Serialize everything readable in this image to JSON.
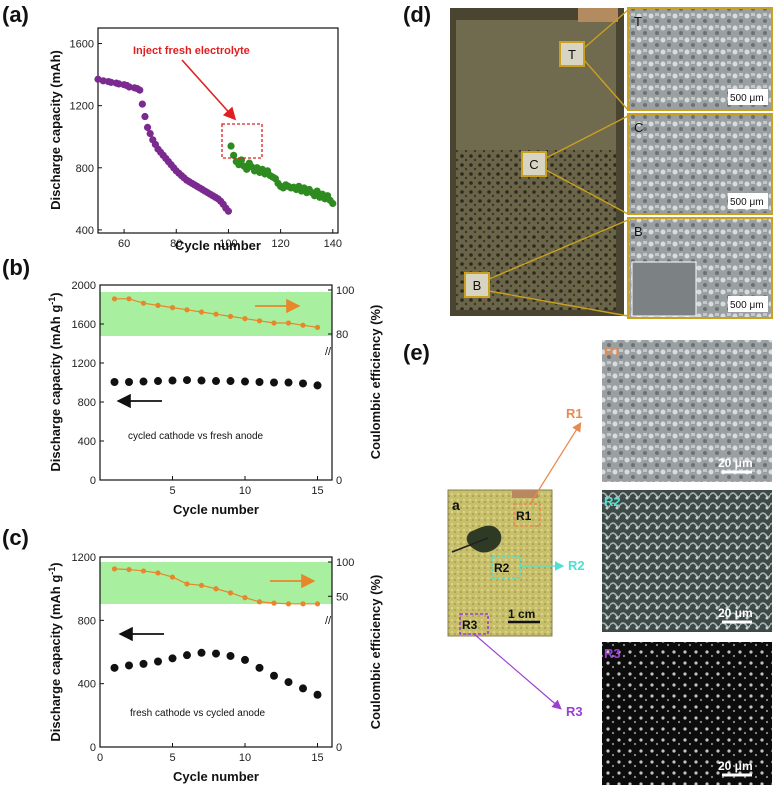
{
  "chart_data": [
    {
      "panel_label": "(a)",
      "type": "scatter",
      "xlabel": "Cycle number",
      "ylabel": "Discharge capacity (mAh)",
      "xlim": [
        50,
        142
      ],
      "ylim": [
        380,
        1700
      ],
      "xticks": [
        60,
        80,
        100,
        120,
        140
      ],
      "yticks": [
        400,
        800,
        1200,
        1600
      ],
      "annotation": "Inject fresh electrolyte",
      "annotation_color": "#e02020",
      "series": [
        {
          "color": "#7b2a8f",
          "points": [
            [
              50,
              1370
            ],
            [
              52,
              1360
            ],
            [
              54,
              1355
            ],
            [
              55,
              1350
            ],
            [
              57,
              1345
            ],
            [
              58,
              1340
            ],
            [
              60,
              1335
            ],
            [
              61,
              1330
            ],
            [
              62,
              1320
            ],
            [
              64,
              1315
            ],
            [
              65,
              1310
            ],
            [
              66,
              1300
            ],
            [
              67,
              1210
            ],
            [
              68,
              1130
            ],
            [
              69,
              1060
            ],
            [
              70,
              1020
            ],
            [
              71,
              980
            ],
            [
              72,
              950
            ],
            [
              73,
              920
            ],
            [
              74,
              900
            ],
            [
              75,
              880
            ],
            [
              76,
              860
            ],
            [
              77,
              840
            ],
            [
              78,
              820
            ],
            [
              79,
              800
            ],
            [
              80,
              780
            ],
            [
              81,
              765
            ],
            [
              82,
              750
            ],
            [
              83,
              735
            ],
            [
              84,
              720
            ],
            [
              85,
              710
            ],
            [
              86,
              700
            ],
            [
              87,
              690
            ],
            [
              88,
              680
            ],
            [
              89,
              670
            ],
            [
              90,
              660
            ],
            [
              91,
              650
            ],
            [
              92,
              640
            ],
            [
              93,
              630
            ],
            [
              94,
              620
            ],
            [
              95,
              610
            ],
            [
              96,
              600
            ],
            [
              97,
              585
            ],
            [
              98,
              565
            ],
            [
              99,
              540
            ],
            [
              100,
              520
            ]
          ]
        },
        {
          "color": "#2e8b20",
          "points": [
            [
              101,
              940
            ],
            [
              102,
              880
            ],
            [
              103,
              840
            ],
            [
              104,
              820
            ],
            [
              105,
              850
            ],
            [
              106,
              810
            ],
            [
              107,
              790
            ],
            [
              108,
              830
            ],
            [
              109,
              805
            ],
            [
              110,
              780
            ],
            [
              111,
              800
            ],
            [
              112,
              770
            ],
            [
              113,
              790
            ],
            [
              114,
              760
            ],
            [
              115,
              780
            ],
            [
              116,
              750
            ],
            [
              117,
              740
            ],
            [
              118,
              730
            ],
            [
              119,
              700
            ],
            [
              120,
              680
            ],
            [
              121,
              670
            ],
            [
              122,
              690
            ],
            [
              123,
              680
            ],
            [
              124,
              670
            ],
            [
              125,
              675
            ],
            [
              126,
              660
            ],
            [
              127,
              680
            ],
            [
              128,
              650
            ],
            [
              129,
              670
            ],
            [
              130,
              640
            ],
            [
              131,
              660
            ],
            [
              132,
              640
            ],
            [
              133,
              620
            ],
            [
              134,
              650
            ],
            [
              135,
              610
            ],
            [
              136,
              630
            ],
            [
              137,
              600
            ],
            [
              138,
              620
            ],
            [
              139,
              590
            ],
            [
              140,
              570
            ]
          ]
        }
      ]
    },
    {
      "panel_label": "(b)",
      "type": "scatter",
      "xlabel": "Cycle number",
      "ylabel": "Discharge capacity (mAh g",
      "ylabel_sup": "-1",
      "ylabel_end": ")",
      "y2label": "Coulombic efficiency (%)",
      "xlim": [
        0,
        16
      ],
      "ylim": [
        0,
        2000
      ],
      "xticks": [
        5,
        10,
        15
      ],
      "yticks": [
        0,
        400,
        800,
        1200,
        1600,
        2000
      ],
      "y2ticks": [
        0,
        80,
        100
      ],
      "annotation": "cycled cathode vs fresh anode",
      "capacity": {
        "color": "#111111",
        "x": [
          1,
          2,
          3,
          4,
          5,
          6,
          7,
          8,
          9,
          10,
          11,
          12,
          13,
          14,
          15
        ],
        "values": [
          1005,
          1005,
          1010,
          1015,
          1020,
          1025,
          1020,
          1015,
          1015,
          1010,
          1005,
          1000,
          1000,
          990,
          970
        ]
      },
      "efficiency": {
        "color": "#e8862a",
        "x": [
          1,
          2,
          3,
          4,
          5,
          6,
          7,
          8,
          9,
          10,
          11,
          12,
          13,
          14,
          15
        ],
        "values": [
          96,
          96,
          94,
          93,
          92,
          91,
          90,
          89,
          88,
          87,
          86,
          85,
          85,
          84,
          83
        ]
      }
    },
    {
      "panel_label": "(c)",
      "type": "scatter",
      "xlabel": "Cycle number",
      "ylabel": "Discharge capacity (mAh g",
      "ylabel_sup": "-1",
      "ylabel_end": ")",
      "y2label": "Coulombic efficiency (%)",
      "xlim": [
        0,
        16
      ],
      "ylim": [
        0,
        1200
      ],
      "xticks": [
        0,
        5,
        10,
        15
      ],
      "yticks": [
        0,
        400,
        800,
        1200
      ],
      "y2ticks": [
        0,
        50,
        100
      ],
      "annotation": "fresh cathode vs cycled anode",
      "capacity": {
        "color": "#111111",
        "x": [
          1,
          2,
          3,
          4,
          5,
          6,
          7,
          8,
          9,
          10,
          11,
          12,
          13,
          14,
          15
        ],
        "values": [
          500,
          515,
          525,
          540,
          560,
          580,
          595,
          590,
          575,
          550,
          500,
          450,
          410,
          370,
          330
        ]
      },
      "efficiency": {
        "color": "#e8862a",
        "x": [
          1,
          2,
          3,
          4,
          5,
          6,
          7,
          8,
          9,
          10,
          11,
          12,
          13,
          14,
          15
        ],
        "values": [
          90,
          89,
          87,
          84,
          78,
          68,
          66,
          61,
          55,
          48,
          42,
          40,
          39,
          39,
          39
        ]
      }
    }
  ],
  "panel_d": {
    "label": "(d)",
    "markers": [
      "T",
      "C",
      "B"
    ],
    "insets": [
      {
        "label": "T",
        "scale": "500 μm"
      },
      {
        "label": "C",
        "scale": "500 μm"
      },
      {
        "label": "B",
        "scale": "500 μm"
      }
    ]
  },
  "panel_e": {
    "label": "(e)",
    "photo_label": "a",
    "photo_scale": "1 cm",
    "regions": [
      {
        "label": "R1",
        "color": "#e88a50",
        "scale": "20 μm"
      },
      {
        "label": "R2",
        "color": "#4ee0d0",
        "scale": "20 μm"
      },
      {
        "label": "R3",
        "color": "#9b3fd1",
        "scale": "20 μm"
      }
    ]
  }
}
